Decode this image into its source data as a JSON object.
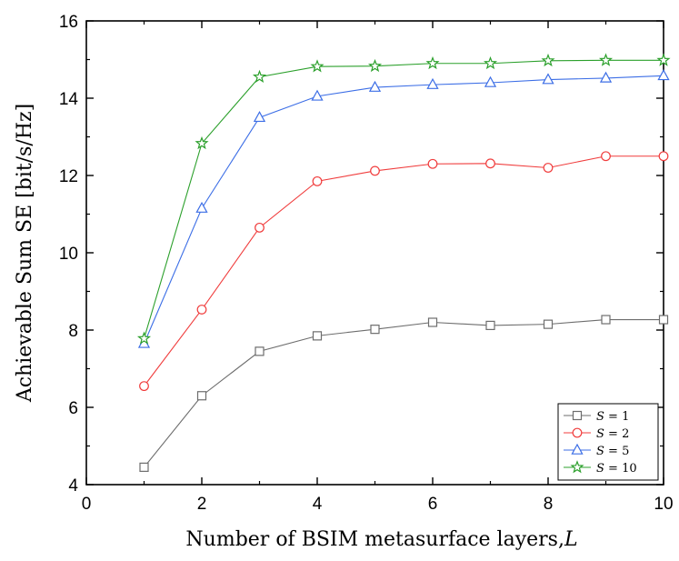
{
  "chart_data": {
    "type": "line",
    "title": "",
    "xlabel": "Number of BSIM metasurface layers,",
    "xlabel_symbol": "L",
    "ylabel": "Achievable Sum SE [bit/s/Hz]",
    "xlim": [
      0,
      10
    ],
    "ylim": [
      4,
      16
    ],
    "xticks": [
      0,
      2,
      4,
      6,
      8,
      10
    ],
    "yticks": [
      4,
      6,
      8,
      10,
      12,
      14,
      16
    ],
    "grid": false,
    "legend_position": "bottom-right",
    "x": [
      1,
      2,
      3,
      4,
      5,
      6,
      7,
      8,
      9,
      10
    ],
    "series": [
      {
        "name": "S = 1",
        "label_var": "S",
        "label_op": " = ",
        "label_val": "1",
        "color": "#6d6d6d",
        "marker": "square",
        "values": [
          4.45,
          6.3,
          7.45,
          7.85,
          8.02,
          8.2,
          8.12,
          8.15,
          8.27,
          8.27
        ]
      },
      {
        "name": "S = 2",
        "label_var": "S",
        "label_op": " = ",
        "label_val": "2",
        "color": "#f03c3c",
        "marker": "circle",
        "values": [
          6.55,
          8.53,
          10.65,
          11.85,
          12.12,
          12.3,
          12.31,
          12.2,
          12.5,
          12.5
        ]
      },
      {
        "name": "S = 5",
        "label_var": "S",
        "label_op": " = ",
        "label_val": "5",
        "color": "#3c6ee6",
        "marker": "triangle",
        "values": [
          7.65,
          11.15,
          13.5,
          14.05,
          14.28,
          14.35,
          14.4,
          14.48,
          14.52,
          14.58
        ]
      },
      {
        "name": "S = 10",
        "label_var": "S",
        "label_op": " = ",
        "label_val": "10",
        "color": "#2ca02c",
        "marker": "star",
        "values": [
          7.78,
          12.83,
          14.55,
          14.82,
          14.83,
          14.9,
          14.9,
          14.97,
          14.98,
          14.98
        ]
      }
    ]
  }
}
